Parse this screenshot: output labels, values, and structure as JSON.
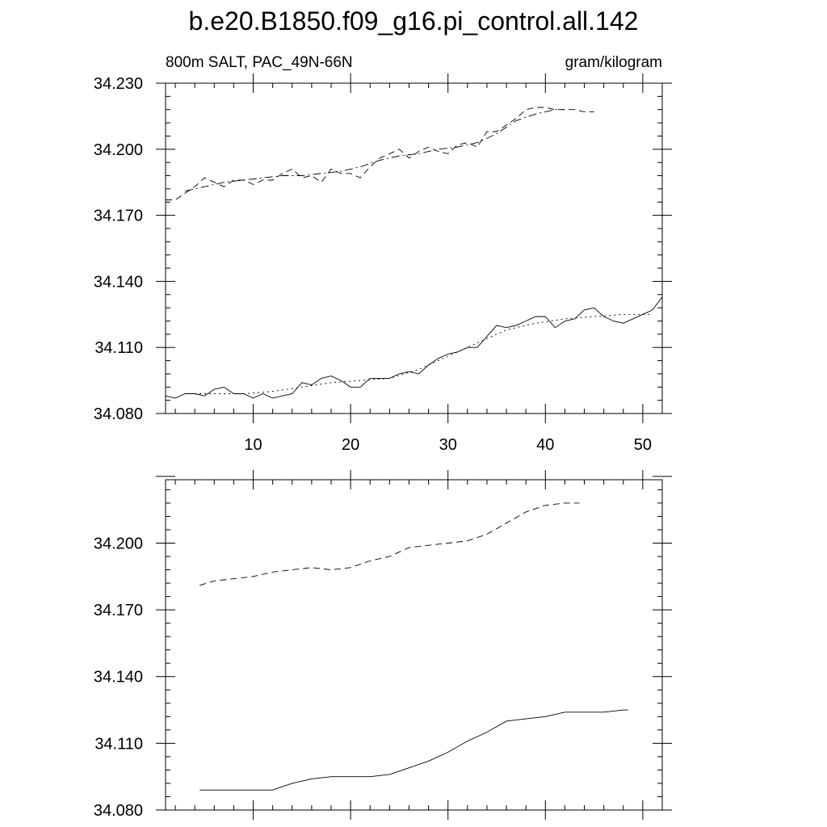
{
  "title": "b.e20.B1850.f09_g16.pi_control.all.142",
  "chart_data": [
    {
      "type": "line",
      "left_label": "800m SALT, PAC_49N-66N",
      "right_label": "gram/kilogram",
      "xlim": [
        1,
        52
      ],
      "ylim": [
        34.08,
        34.23
      ],
      "x_ticks": [
        10,
        20,
        30,
        40,
        50
      ],
      "y_ticks": [
        34.08,
        34.11,
        34.14,
        34.17,
        34.2,
        34.23
      ],
      "y_tick_labels": [
        "34.080",
        "34.110",
        "34.140",
        "34.170",
        "34.200",
        "34.230"
      ],
      "series": [
        {
          "style": "dash",
          "x": [
            1,
            2,
            3,
            4,
            5,
            6,
            7,
            8,
            9,
            10,
            11,
            12,
            13,
            14,
            15,
            16,
            17,
            18,
            19,
            20,
            21,
            22,
            23,
            24,
            25,
            26,
            27,
            28,
            29,
            30,
            31,
            32,
            33,
            34,
            35,
            36,
            37,
            38,
            39,
            40,
            41,
            42,
            43,
            44,
            45
          ],
          "y": [
            34.177,
            34.177,
            34.18,
            34.183,
            34.187,
            34.185,
            34.183,
            34.186,
            34.186,
            34.184,
            34.186,
            34.186,
            34.189,
            34.191,
            34.187,
            34.188,
            34.185,
            34.191,
            34.189,
            34.189,
            34.187,
            34.192,
            34.196,
            34.198,
            34.2,
            34.196,
            34.199,
            34.201,
            34.199,
            34.198,
            34.202,
            34.203,
            34.201,
            34.208,
            34.208,
            34.211,
            34.214,
            34.218,
            34.219,
            34.219,
            34.218,
            34.218,
            34.218,
            34.217,
            34.217
          ]
        },
        {
          "style": "dashdot",
          "x": [
            3,
            5,
            7,
            9,
            11,
            13,
            15,
            17,
            19,
            21,
            23,
            25,
            27,
            29,
            31,
            33,
            35,
            37,
            39,
            41,
            42
          ],
          "y": [
            34.181,
            34.183,
            34.185,
            34.186,
            34.187,
            34.188,
            34.188,
            34.189,
            34.19,
            34.192,
            34.195,
            34.197,
            34.198,
            34.2,
            34.201,
            34.203,
            34.207,
            34.213,
            34.216,
            34.218,
            34.218
          ]
        },
        {
          "style": "solid",
          "x": [
            1,
            2,
            3,
            4,
            5,
            6,
            7,
            8,
            9,
            10,
            11,
            12,
            13,
            14,
            15,
            16,
            17,
            18,
            19,
            20,
            21,
            22,
            23,
            24,
            25,
            26,
            27,
            28,
            29,
            30,
            31,
            32,
            33,
            34,
            35,
            36,
            37,
            38,
            39,
            40,
            41,
            42,
            43,
            44,
            45,
            46,
            47,
            48,
            49,
            50,
            51,
            52
          ],
          "y": [
            34.088,
            34.087,
            34.089,
            34.089,
            34.088,
            34.091,
            34.092,
            34.089,
            34.089,
            34.087,
            34.089,
            34.087,
            34.088,
            34.089,
            34.094,
            34.093,
            34.096,
            34.097,
            34.095,
            34.092,
            34.092,
            34.096,
            34.096,
            34.096,
            34.098,
            34.099,
            34.098,
            34.102,
            34.105,
            34.107,
            34.108,
            34.11,
            34.11,
            34.115,
            34.12,
            34.119,
            34.12,
            34.122,
            34.124,
            34.124,
            34.119,
            34.122,
            34.123,
            34.127,
            34.128,
            34.124,
            34.122,
            34.121,
            34.123,
            34.125,
            34.127,
            34.133
          ]
        },
        {
          "style": "dot",
          "x": [
            3,
            6,
            9,
            12,
            15,
            18,
            21,
            24,
            27,
            30,
            33,
            36,
            39,
            42,
            45,
            48,
            51
          ],
          "y": [
            34.089,
            34.089,
            34.089,
            34.09,
            34.092,
            34.094,
            34.095,
            34.096,
            34.1,
            34.106,
            34.112,
            34.118,
            34.121,
            34.123,
            34.124,
            34.125,
            34.125
          ]
        }
      ]
    },
    {
      "type": "line",
      "xlim": [
        1,
        52
      ],
      "ylim": [
        34.08,
        34.2285
      ],
      "x_ticks": [
        10,
        20,
        30,
        40,
        50
      ],
      "y_ticks": [
        34.08,
        34.11,
        34.14,
        34.17,
        34.2
      ],
      "y_tick_labels": [
        "34.080",
        "34.110",
        "34.140",
        "34.170",
        "34.200"
      ],
      "series": [
        {
          "style": "dash",
          "x": [
            4.5,
            6,
            8,
            10,
            12,
            14,
            16,
            18,
            20,
            22,
            24,
            26,
            28,
            30,
            32,
            34,
            36,
            38,
            40,
            42,
            43.5
          ],
          "y": [
            34.181,
            34.183,
            34.184,
            34.185,
            34.187,
            34.188,
            34.189,
            34.188,
            34.189,
            34.192,
            34.194,
            34.198,
            34.199,
            34.2,
            34.201,
            34.204,
            34.209,
            34.214,
            34.217,
            34.218,
            34.218
          ]
        },
        {
          "style": "solid",
          "x": [
            4.5,
            6,
            8,
            10,
            12,
            14,
            16,
            18,
            20,
            22,
            24,
            26,
            28,
            30,
            32,
            34,
            36,
            38,
            40,
            42,
            44,
            46,
            48,
            48.5
          ],
          "y": [
            34.089,
            34.089,
            34.089,
            34.089,
            34.089,
            34.092,
            34.094,
            34.095,
            34.095,
            34.095,
            34.096,
            34.099,
            34.102,
            34.106,
            34.111,
            34.115,
            34.12,
            34.121,
            34.122,
            34.124,
            34.124,
            34.124,
            34.125,
            34.125
          ]
        }
      ]
    }
  ]
}
